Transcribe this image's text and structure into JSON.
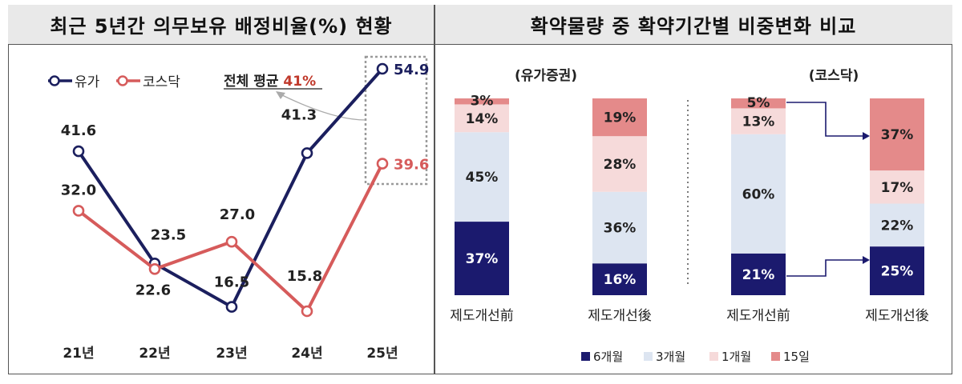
{
  "left_panel": {
    "title": "최근 5년간 의무보유 배정비율(%) 현황"
  },
  "right_panel": {
    "title": "확약물량 중 확약기간별 비중변화 비교"
  },
  "chart_data": [
    {
      "type": "line",
      "title": "최근 5년간 의무보유 배정비율(%) 현황",
      "categories": [
        "21년",
        "22년",
        "23년",
        "24년",
        "25년"
      ],
      "ylim": [
        10,
        60
      ],
      "series": [
        {
          "name": "유가",
          "values": [
            41.6,
            23.5,
            16.5,
            41.3,
            54.9
          ],
          "color": "#1b1f5e"
        },
        {
          "name": "코스닥",
          "values": [
            32.0,
            22.6,
            27.0,
            15.8,
            39.6
          ],
          "color": "#d65b5b"
        }
      ],
      "value_labels": {
        "유가": [
          "41.6",
          "23.5",
          "16.5",
          "41.3",
          "54.9"
        ],
        "코스닥": [
          "32.0",
          "22.6",
          "27.0",
          "15.8",
          "39.6"
        ]
      },
      "annotation": {
        "prefix": "전체 평균 ",
        "value": "41%",
        "color": "#c0392b"
      },
      "legend_position": "top-left"
    },
    {
      "type": "bar",
      "stacked": true,
      "normalized": true,
      "title": "확약물량 중 확약기간별 비중변화 비교",
      "groups": [
        {
          "name": "(유가증권)",
          "categories": [
            "제도개선前",
            "제도개선後"
          ]
        },
        {
          "name": "(코스닥)",
          "categories": [
            "제도개선前",
            "제도개선後"
          ]
        }
      ],
      "series": [
        {
          "name": "6개월",
          "color": "#1b1a6e",
          "values": [
            37,
            16,
            21,
            25
          ]
        },
        {
          "name": "3개월",
          "color": "#dde5f1",
          "values": [
            45,
            36,
            60,
            22
          ]
        },
        {
          "name": "1개월",
          "color": "#f6dada",
          "values": [
            14,
            28,
            13,
            17
          ]
        },
        {
          "name": "15일",
          "color": "#e48a8a",
          "values": [
            3,
            19,
            5,
            37
          ]
        }
      ],
      "legend_position": "bottom"
    }
  ]
}
